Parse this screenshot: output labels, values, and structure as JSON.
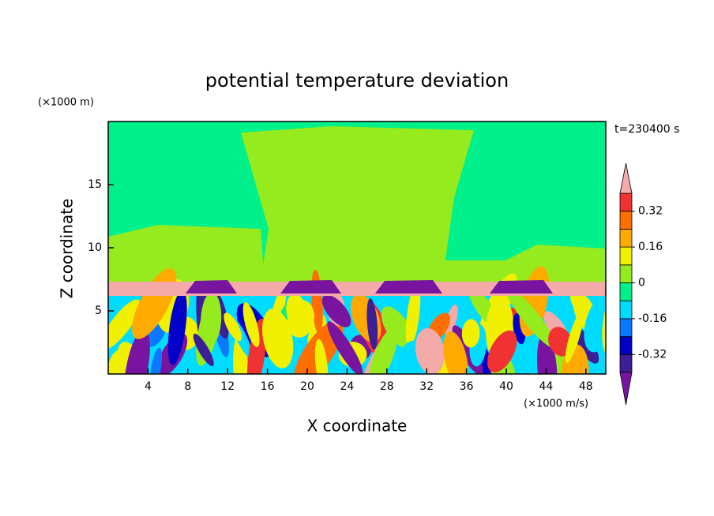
{
  "chart_data": {
    "type": "contour",
    "title": "potential temperature deviation",
    "xlabel": "X coordinate",
    "ylabel": "Z coordinate",
    "x_unit": "(×1000 m/s)",
    "y_unit": "(×1000 m)",
    "annotation": "t=230400 s",
    "xlim": [
      0,
      50
    ],
    "ylim": [
      0,
      20
    ],
    "xticks": [
      4,
      8,
      12,
      16,
      20,
      24,
      28,
      32,
      36,
      40,
      44,
      48
    ],
    "yticks": [
      5,
      10,
      15
    ],
    "colorbar": {
      "levels": [
        -0.4,
        -0.32,
        -0.24,
        -0.16,
        -0.08,
        0,
        0.08,
        0.16,
        0.24,
        0.32,
        0.4
      ],
      "colors": [
        "#7814a0",
        "#3c1e96",
        "#0000c8",
        "#0a78ff",
        "#00dcff",
        "#00f08c",
        "#96eb1e",
        "#f0f000",
        "#ffaa00",
        "#ff6e00",
        "#f03232",
        "#f5aaaa"
      ],
      "ticks": [
        -0.32,
        -0.16,
        0,
        0.16,
        0.32
      ]
    }
  }
}
